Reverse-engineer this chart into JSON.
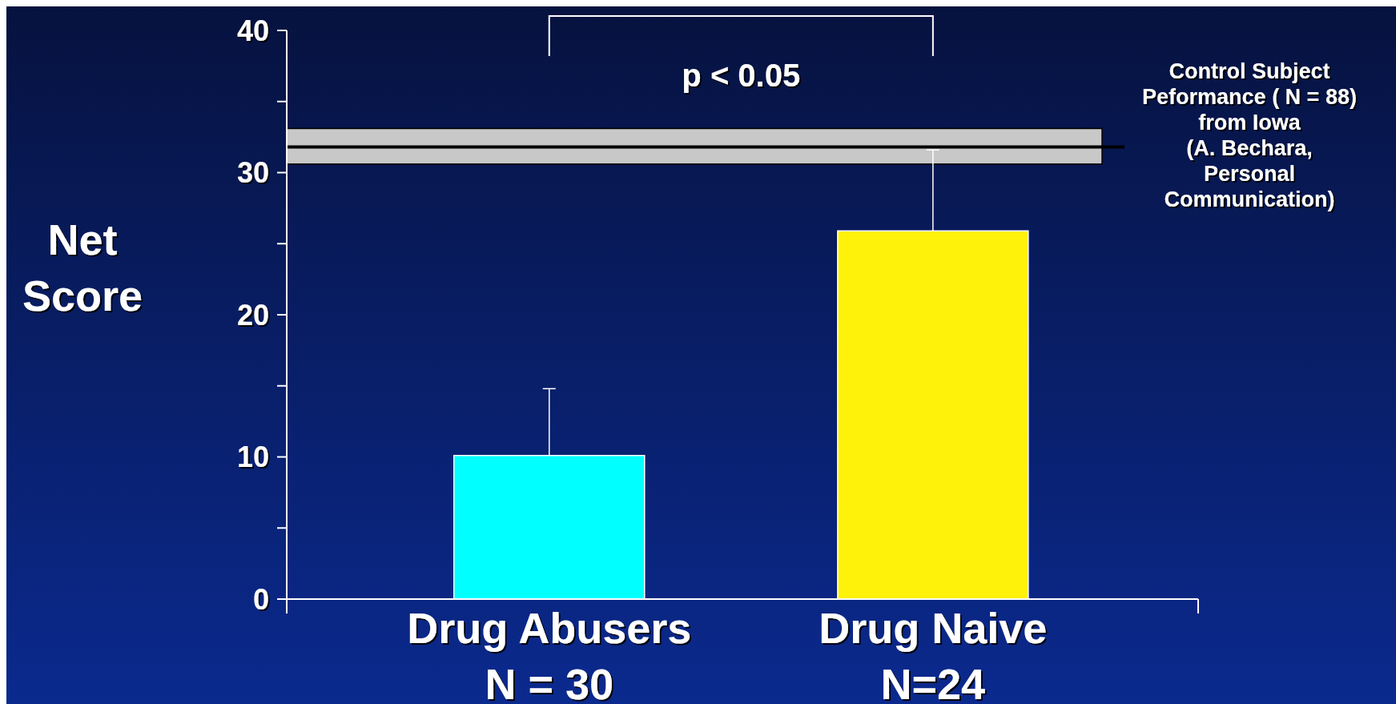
{
  "chart_data": {
    "type": "bar",
    "ylabel": "Net\nScore",
    "categories": [
      "Drug Abusers\nN = 30",
      "Drug Naive\nN=24"
    ],
    "values": [
      10.1,
      25.9
    ],
    "colors": [
      "#00ffff",
      "#fff20a"
    ],
    "errors": [
      [
        10.1,
        14.8
      ],
      [
        25.9,
        31.6
      ]
    ],
    "ylim": [
      0,
      40
    ],
    "yticks": [
      0,
      {
        "value": 5,
        "label": null
      },
      10,
      {
        "value": 15,
        "label": null
      },
      20,
      {
        "value": 25,
        "label": null
      },
      30,
      {
        "value": 35,
        "label": null
      },
      40
    ],
    "bands": [
      {
        "axis": "y",
        "from": 30.6,
        "to": 33.1,
        "color": "#c8c8c8",
        "label": "Control Subject\nPeformance ( N = 88)\nfrom Iowa\n(A. Bechara,\nPersonal\nCommunication)"
      }
    ],
    "ref_lines": [
      {
        "axis": "y",
        "value": 31.8,
        "color": "#000000"
      }
    ],
    "annotations": [
      "p < 0.05"
    ]
  }
}
